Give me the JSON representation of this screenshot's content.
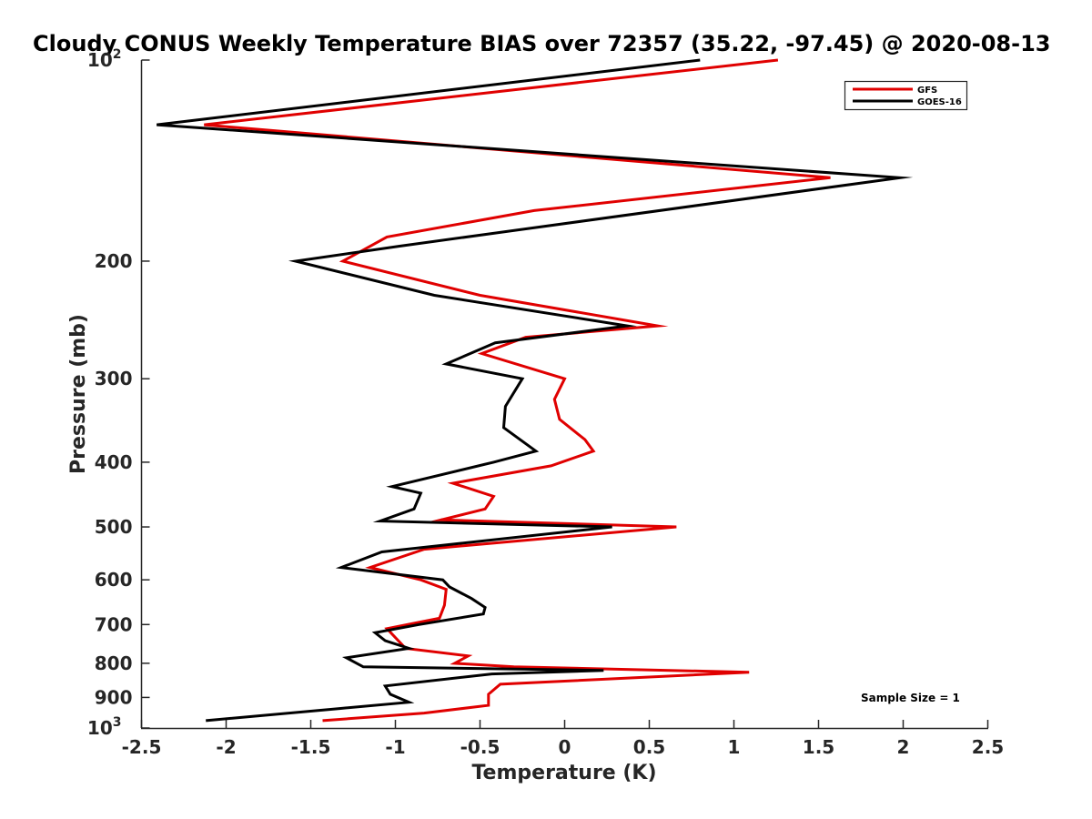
{
  "chart_data": {
    "type": "line",
    "title": "Cloudy CONUS Weekly Temperature BIAS over 72357 (35.22, -97.45) @ 2020-08-13",
    "xlabel": "Temperature (K)",
    "ylabel": "Pressure (mb)",
    "xlim": [
      -2.5,
      2.5
    ],
    "ylim": [
      100,
      1000
    ],
    "y_scale": "log",
    "y_reversed": true,
    "grid": false,
    "legend_position": "top-right",
    "annotation": "Sample Size = 1",
    "x_ticks": [
      {
        "value": -2.5,
        "label": "-2.5"
      },
      {
        "value": -2,
        "label": "-2"
      },
      {
        "value": -1.5,
        "label": "-1.5"
      },
      {
        "value": -1,
        "label": "-1"
      },
      {
        "value": -0.5,
        "label": "-0.5"
      },
      {
        "value": 0,
        "label": "0"
      },
      {
        "value": 0.5,
        "label": "0.5"
      },
      {
        "value": 1,
        "label": "1"
      },
      {
        "value": 1.5,
        "label": "1.5"
      },
      {
        "value": 2,
        "label": "2"
      },
      {
        "value": 2.5,
        "label": "2.5"
      }
    ],
    "y_ticks": [
      {
        "value": 100,
        "label": "10",
        "exponent": "2"
      },
      {
        "value": 200,
        "label": "200"
      },
      {
        "value": 300,
        "label": "300"
      },
      {
        "value": 400,
        "label": "400"
      },
      {
        "value": 500,
        "label": "500"
      },
      {
        "value": 600,
        "label": "600"
      },
      {
        "value": 700,
        "label": "700"
      },
      {
        "value": 800,
        "label": "800"
      },
      {
        "value": 900,
        "label": "900"
      },
      {
        "value": 1000,
        "label": "10",
        "exponent": "3"
      }
    ],
    "series": [
      {
        "name": "GFS",
        "color": "#e00000",
        "points": [
          [
            1.26,
            100
          ],
          [
            -2.13,
            125
          ],
          [
            1.57,
            150
          ],
          [
            -0.18,
            168
          ],
          [
            -1.05,
            184
          ],
          [
            -1.31,
            200
          ],
          [
            -0.5,
            225
          ],
          [
            0.55,
            250
          ],
          [
            -0.23,
            260
          ],
          [
            -0.49,
            275
          ],
          [
            0.0,
            300
          ],
          [
            -0.06,
            322
          ],
          [
            -0.03,
            345
          ],
          [
            0.12,
            370
          ],
          [
            0.17,
            385
          ],
          [
            -0.08,
            405
          ],
          [
            -0.66,
            430
          ],
          [
            -0.42,
            450
          ],
          [
            -0.47,
            470
          ],
          [
            -0.73,
            488
          ],
          [
            0.66,
            500
          ],
          [
            -0.83,
            540
          ],
          [
            -1.15,
            575
          ],
          [
            -0.85,
            600
          ],
          [
            -0.7,
            620
          ],
          [
            -0.71,
            655
          ],
          [
            -0.74,
            685
          ],
          [
            -1.05,
            710
          ],
          [
            -0.94,
            760
          ],
          [
            -0.57,
            780
          ],
          [
            -0.65,
            800
          ],
          [
            -0.3,
            810
          ],
          [
            1.09,
            825
          ],
          [
            -0.38,
            860
          ],
          [
            -0.45,
            890
          ],
          [
            -0.45,
            925
          ],
          [
            -0.83,
            950
          ],
          [
            -1.43,
            975
          ]
        ]
      },
      {
        "name": "GOES-16",
        "color": "#000000",
        "points": [
          [
            0.8,
            100
          ],
          [
            -2.41,
            125
          ],
          [
            1.98,
            150
          ],
          [
            -0.98,
            190
          ],
          [
            -1.59,
            200
          ],
          [
            -0.77,
            225
          ],
          [
            0.37,
            250
          ],
          [
            -0.41,
            265
          ],
          [
            -0.7,
            285
          ],
          [
            -0.25,
            300
          ],
          [
            -0.35,
            330
          ],
          [
            -0.36,
            355
          ],
          [
            -0.17,
            385
          ],
          [
            -0.42,
            400
          ],
          [
            -1.02,
            435
          ],
          [
            -0.85,
            445
          ],
          [
            -0.89,
            470
          ],
          [
            -1.09,
            490
          ],
          [
            0.28,
            500
          ],
          [
            -1.08,
            545
          ],
          [
            -1.32,
            575
          ],
          [
            -0.72,
            600
          ],
          [
            -0.68,
            615
          ],
          [
            -0.55,
            640
          ],
          [
            -0.47,
            660
          ],
          [
            -0.48,
            675
          ],
          [
            -0.86,
            700
          ],
          [
            -1.12,
            720
          ],
          [
            -1.06,
            740
          ],
          [
            -0.92,
            760
          ],
          [
            -1.29,
            785
          ],
          [
            -1.19,
            810
          ],
          [
            0.23,
            820
          ],
          [
            -0.43,
            830
          ],
          [
            -1.06,
            865
          ],
          [
            -1.03,
            890
          ],
          [
            -0.92,
            915
          ],
          [
            -1.33,
            935
          ],
          [
            -2.12,
            975
          ]
        ]
      }
    ]
  }
}
